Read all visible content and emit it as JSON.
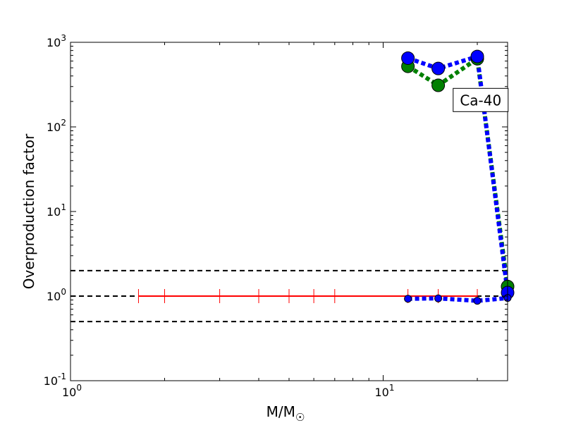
{
  "chart_data": {
    "type": "line",
    "xscale": "log",
    "yscale": "log",
    "xlim": [
      1,
      25
    ],
    "ylim": [
      0.1,
      1000
    ],
    "xlabel": "M/M",
    "xlabel_symbol": "☉",
    "ylabel": "Overproduction factor",
    "grid": false,
    "x_tick_labels": [
      {
        "value": 1,
        "base": "10",
        "exp": "0"
      },
      {
        "value": 10,
        "base": "10",
        "exp": "1"
      }
    ],
    "y_tick_labels": [
      {
        "value": 0.1,
        "base": "10",
        "exp": "-1"
      },
      {
        "value": 1,
        "base": "10",
        "exp": "0"
      },
      {
        "value": 10,
        "base": "10",
        "exp": "1"
      },
      {
        "value": 100,
        "base": "10",
        "exp": "2"
      },
      {
        "value": 1000,
        "base": "10",
        "exp": "3"
      }
    ],
    "annotation": {
      "text": "Ca-40",
      "x": 20.5,
      "y": 210
    },
    "reference_lines": [
      {
        "y": 2.0,
        "color": "#000000",
        "style": "dashed"
      },
      {
        "y": 1.0,
        "color": "#000000",
        "style": "dashed"
      },
      {
        "y": 0.5,
        "color": "#000000",
        "style": "dashed"
      }
    ],
    "series": [
      {
        "color": "#ff0000",
        "style": "solid",
        "marker": "vline",
        "x": [
          1.65,
          2,
          3,
          4,
          5,
          6,
          7,
          12,
          15,
          20
        ],
        "y": [
          1,
          1,
          1,
          1,
          1,
          1,
          1,
          1,
          1,
          1
        ]
      },
      {
        "color": "#008000",
        "style": "dotted",
        "marker": "circle",
        "x": [
          12,
          15,
          20,
          25
        ],
        "y": [
          520,
          310,
          640,
          1.3
        ]
      },
      {
        "color": "#0000ff",
        "style": "dotted",
        "marker": "circle",
        "x": [
          12,
          15,
          20,
          25
        ],
        "y": [
          650,
          490,
          680,
          1.1
        ]
      },
      {
        "color": "#0000ff",
        "style": "dotted",
        "marker": "circle-small",
        "x": [
          12,
          15,
          20,
          25
        ],
        "y": [
          0.93,
          0.94,
          0.88,
          0.95
        ]
      }
    ]
  }
}
